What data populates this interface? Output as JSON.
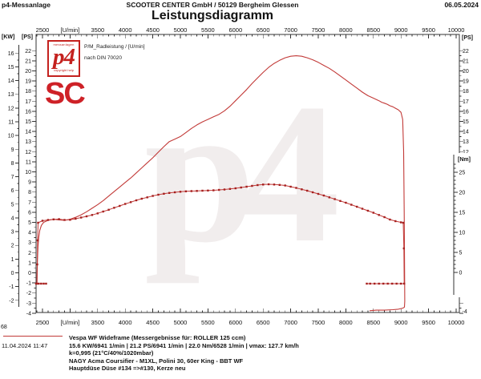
{
  "header": {
    "app_name": "p4-Messanlage",
    "company": "SCOOTER CENTER GmbH / 50129 Bergheim Glessen",
    "date": "06.05.2024"
  },
  "title": "Leistungsdiagramm",
  "legend": {
    "series_label": "P/M_Radleistung / [U/min]",
    "norm_label": "nach DIN 70020"
  },
  "p4_logo": {
    "top_text": "messanlagen",
    "main_text": "p4",
    "bottom_text": "copyright help"
  },
  "sc_logo": {
    "text": "SC"
  },
  "watermark": "p4",
  "footer": {
    "run_number": "68",
    "datetime": "11.04.2024  11:47",
    "lines": [
      "Vespa WF Wideframe (Messergebnisse für: ROLLER 125 ccm)",
      "15.6 KW/6941 1/min  |  21.2 PS/6941 1/min  |  22.0 Nm/6528 1/min | vmax: 127.7 km/h",
      "k=0,995 (21°C/40%/1020mbar)",
      "NAGY Acma Coursifier - M1XL, Polini 30, 60er King - BBT WF",
      "Hauptdüse Düse #134 =>#130, Kerze neu"
    ]
  },
  "chart_data": {
    "type": "line",
    "x_axis": {
      "unit_label": "[U/min]",
      "minor_step": 100,
      "major_step": 500,
      "tick_start": 2500,
      "tick_end": 10000,
      "tick_labels": [
        "2500",
        "[U/min]",
        "3500",
        "4000",
        "4500",
        "5000",
        "5500",
        "6000",
        "6500",
        "7000",
        "7500",
        "8000",
        "8500",
        "9000",
        "9500",
        "10000"
      ]
    },
    "y_axes": {
      "kw": {
        "header": "[KW]",
        "min": -2,
        "max": 16,
        "step": 1,
        "minor_step": 0.5
      },
      "ps_left": {
        "header": "[PS]",
        "min": -4,
        "max": 22,
        "step": 1,
        "minor_step": 0.5
      },
      "ps_right": {
        "header": "[PS]",
        "label_min": 12,
        "bottom_label": "-4"
      },
      "nm": {
        "header": "[Nm]",
        "min": 0,
        "max": 25,
        "step": 5,
        "minor_step": 1
      }
    },
    "colors": {
      "line": "#c23a38",
      "marker": "#a5201f",
      "frame": "#333333",
      "text": "#111111"
    },
    "series": [
      {
        "name": "wheel-power-ps",
        "axis": "ps",
        "marker": false,
        "width": 1.1,
        "points": [
          [
            2400,
            -1.0
          ],
          [
            2408,
            1.2
          ],
          [
            2418,
            2.6
          ],
          [
            2432,
            3.5
          ],
          [
            2450,
            4.2
          ],
          [
            2480,
            4.7
          ],
          [
            2520,
            5.0
          ],
          [
            2600,
            5.2
          ],
          [
            2700,
            5.3
          ],
          [
            2800,
            5.25
          ],
          [
            2900,
            5.2
          ],
          [
            3000,
            5.3
          ],
          [
            3100,
            5.5
          ],
          [
            3200,
            5.75
          ],
          [
            3300,
            6.05
          ],
          [
            3400,
            6.4
          ],
          [
            3500,
            6.75
          ],
          [
            3600,
            7.15
          ],
          [
            3700,
            7.6
          ],
          [
            3800,
            8.05
          ],
          [
            3900,
            8.5
          ],
          [
            4000,
            8.95
          ],
          [
            4100,
            9.4
          ],
          [
            4200,
            9.9
          ],
          [
            4300,
            10.4
          ],
          [
            4400,
            10.9
          ],
          [
            4500,
            11.4
          ],
          [
            4600,
            11.95
          ],
          [
            4700,
            12.5
          ],
          [
            4800,
            13.0
          ],
          [
            4900,
            13.25
          ],
          [
            5000,
            13.5
          ],
          [
            5100,
            13.9
          ],
          [
            5200,
            14.3
          ],
          [
            5300,
            14.65
          ],
          [
            5400,
            14.95
          ],
          [
            5500,
            15.2
          ],
          [
            5600,
            15.45
          ],
          [
            5700,
            15.7
          ],
          [
            5800,
            16.05
          ],
          [
            5900,
            16.5
          ],
          [
            6000,
            17.05
          ],
          [
            6100,
            17.6
          ],
          [
            6200,
            18.15
          ],
          [
            6300,
            18.75
          ],
          [
            6400,
            19.3
          ],
          [
            6500,
            19.85
          ],
          [
            6600,
            20.35
          ],
          [
            6700,
            20.75
          ],
          [
            6800,
            21.05
          ],
          [
            6900,
            21.3
          ],
          [
            7000,
            21.45
          ],
          [
            7100,
            21.5
          ],
          [
            7200,
            21.45
          ],
          [
            7300,
            21.3
          ],
          [
            7400,
            21.1
          ],
          [
            7500,
            20.85
          ],
          [
            7600,
            20.55
          ],
          [
            7700,
            20.25
          ],
          [
            7800,
            19.9
          ],
          [
            7900,
            19.5
          ],
          [
            8000,
            19.1
          ],
          [
            8100,
            18.7
          ],
          [
            8200,
            18.3
          ],
          [
            8300,
            17.9
          ],
          [
            8400,
            17.55
          ],
          [
            8500,
            17.3
          ],
          [
            8600,
            17.05
          ],
          [
            8650,
            16.9
          ],
          [
            8700,
            16.8
          ],
          [
            8750,
            16.7
          ],
          [
            8800,
            16.55
          ],
          [
            8850,
            16.45
          ],
          [
            8900,
            16.3
          ],
          [
            8950,
            16.15
          ],
          [
            9000,
            15.9
          ],
          [
            9030,
            15.2
          ],
          [
            9048,
            12
          ],
          [
            9058,
            6
          ],
          [
            9065,
            0
          ],
          [
            9068,
            -2.8
          ],
          [
            9062,
            -3.4
          ],
          [
            9030,
            -3.5
          ],
          [
            8950,
            -3.6
          ],
          [
            8850,
            -3.65
          ],
          [
            8700,
            -3.7
          ],
          [
            8550,
            -3.7
          ],
          [
            8430,
            -3.75
          ]
        ]
      },
      {
        "name": "torque-nm",
        "axis": "nm",
        "marker": true,
        "width": 1,
        "points": [
          [
            2400,
            -2.8
          ],
          [
            2406,
            2
          ],
          [
            2412,
            8
          ],
          [
            2420,
            12.4
          ],
          [
            2500,
            12.9
          ],
          [
            2600,
            13.1
          ],
          [
            2700,
            13.25
          ],
          [
            2800,
            13.3
          ],
          [
            2900,
            13.1
          ],
          [
            3000,
            13.15
          ],
          [
            3100,
            13.4
          ],
          [
            3200,
            13.7
          ],
          [
            3300,
            14.0
          ],
          [
            3400,
            14.35
          ],
          [
            3500,
            14.75
          ],
          [
            3600,
            15.2
          ],
          [
            3700,
            15.65
          ],
          [
            3800,
            16.15
          ],
          [
            3900,
            16.6
          ],
          [
            4000,
            17.1
          ],
          [
            4100,
            17.55
          ],
          [
            4200,
            18.0
          ],
          [
            4300,
            18.4
          ],
          [
            4400,
            18.75
          ],
          [
            4500,
            19.1
          ],
          [
            4600,
            19.4
          ],
          [
            4700,
            19.65
          ],
          [
            4800,
            19.85
          ],
          [
            4900,
            20.0
          ],
          [
            5000,
            20.15
          ],
          [
            5100,
            20.25
          ],
          [
            5200,
            20.3
          ],
          [
            5300,
            20.35
          ],
          [
            5400,
            20.4
          ],
          [
            5500,
            20.45
          ],
          [
            5600,
            20.5
          ],
          [
            5700,
            20.6
          ],
          [
            5800,
            20.7
          ],
          [
            5900,
            20.85
          ],
          [
            6000,
            21.0
          ],
          [
            6100,
            21.2
          ],
          [
            6200,
            21.4
          ],
          [
            6300,
            21.6
          ],
          [
            6400,
            21.8
          ],
          [
            6500,
            21.95
          ],
          [
            6600,
            22.0
          ],
          [
            6700,
            21.95
          ],
          [
            6800,
            21.85
          ],
          [
            6900,
            21.7
          ],
          [
            7000,
            21.4
          ],
          [
            7100,
            21.1
          ],
          [
            7200,
            20.75
          ],
          [
            7300,
            20.4
          ],
          [
            7400,
            20.0
          ],
          [
            7500,
            19.6
          ],
          [
            7600,
            19.2
          ],
          [
            7700,
            18.75
          ],
          [
            7800,
            18.3
          ],
          [
            7900,
            17.85
          ],
          [
            8000,
            17.4
          ],
          [
            8100,
            16.9
          ],
          [
            8200,
            16.4
          ],
          [
            8300,
            15.9
          ],
          [
            8400,
            15.4
          ],
          [
            8500,
            14.9
          ],
          [
            8600,
            14.35
          ],
          [
            8700,
            13.8
          ],
          [
            8800,
            13.2
          ],
          [
            8900,
            12.8
          ],
          [
            9000,
            12.5
          ],
          [
            9040,
            12.4
          ],
          [
            9052,
            6
          ],
          [
            9058,
            -2.8
          ],
          [
            9000,
            -2.8
          ],
          [
            8920,
            -2.8
          ],
          [
            8840,
            -2.8
          ],
          [
            8760,
            -2.8
          ],
          [
            8680,
            -2.8
          ],
          [
            8600,
            -2.8
          ],
          [
            8520,
            -2.8
          ],
          [
            8440,
            -2.8
          ],
          [
            8380,
            -2.8
          ]
        ]
      },
      {
        "name": "drag-left",
        "axis": "nm",
        "marker": true,
        "width": 1,
        "points": [
          [
            2384,
            -2.8
          ],
          [
            2430,
            -2.8
          ],
          [
            2476,
            -2.8
          ],
          [
            2522,
            -2.8
          ],
          [
            2565,
            -2.8
          ]
        ]
      }
    ]
  }
}
